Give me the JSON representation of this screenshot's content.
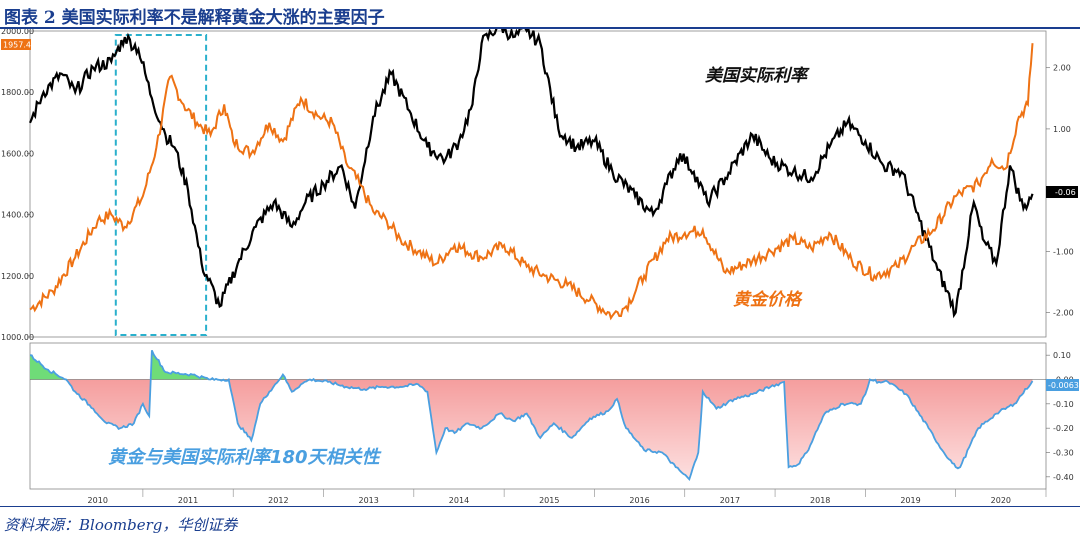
{
  "figure": {
    "title": "图表 2  美国实际利率不是解释黄金大涨的主要因子",
    "source": "资料来源：Bloomberg，华创证券"
  },
  "colors": {
    "gold": "#ee7214",
    "real_rate": "#000000",
    "corr_line": "#4a9fe0",
    "corr_negative_fill": "#f28a8a",
    "corr_positive_fill": "#6fdc78",
    "highlight_box": "#2ab0cc",
    "title": "#1a3e8f"
  },
  "chart_data": [
    {
      "type": "line",
      "x_ticks": [
        "2010",
        "2011",
        "2012",
        "2013",
        "2014",
        "2015",
        "2016",
        "2017",
        "2018",
        "2019",
        "2020"
      ],
      "y_left": {
        "lim": [
          1000,
          2000
        ],
        "ticks": [
          "1000.00",
          "1200.00",
          "1400.00",
          "1600.00",
          "1800.00",
          "2000.00"
        ]
      },
      "y_right": {
        "lim": [
          -2.4,
          2.6
        ],
        "ticks": [
          "-2.00",
          "-1.00",
          "1.00",
          "2.00"
        ]
      },
      "last_value_labels": {
        "gold": "1957.44",
        "real_rate": "-0.06"
      },
      "highlight": "dashed box over 2010.5–2011.5",
      "series": [
        {
          "name": "黄金价格",
          "axis": "left",
          "x": [
            2009.5,
            2009.75,
            2010.0,
            2010.25,
            2010.4,
            2010.55,
            2010.75,
            2010.9,
            2011.05,
            2011.2,
            2011.35,
            2011.5,
            2011.65,
            2011.75,
            2011.95,
            2012.15,
            2012.3,
            2012.5,
            2012.7,
            2012.85,
            2013.0,
            2013.15,
            2013.3,
            2013.45,
            2013.6,
            2013.8,
            2014.0,
            2014.2,
            2014.5,
            2014.75,
            2015.0,
            2015.2,
            2015.45,
            2015.7,
            2015.95,
            2016.1,
            2016.3,
            2016.55,
            2016.75,
            2016.95,
            2017.2,
            2017.5,
            2017.7,
            2017.95,
            2018.15,
            2018.35,
            2018.6,
            2018.85,
            2019.1,
            2019.3,
            2019.5,
            2019.75,
            2020.0,
            2020.15,
            2020.3,
            2020.45,
            2020.55,
            2020.6
          ],
          "values": [
            1090,
            1150,
            1260,
            1380,
            1400,
            1360,
            1460,
            1620,
            1850,
            1760,
            1700,
            1660,
            1760,
            1640,
            1600,
            1700,
            1640,
            1780,
            1720,
            1700,
            1570,
            1500,
            1410,
            1380,
            1320,
            1280,
            1240,
            1300,
            1260,
            1300,
            1230,
            1200,
            1170,
            1120,
            1070,
            1100,
            1200,
            1320,
            1340,
            1350,
            1210,
            1250,
            1280,
            1320,
            1290,
            1340,
            1250,
            1200,
            1230,
            1300,
            1350,
            1460,
            1500,
            1580,
            1550,
            1720,
            1760,
            1960
          ]
        },
        {
          "name": "美国实际利率",
          "axis": "right",
          "x": [
            2009.5,
            2009.65,
            2009.85,
            2010.0,
            2010.2,
            2010.4,
            2010.55,
            2010.7,
            2010.85,
            2011.0,
            2011.1,
            2011.25,
            2011.4,
            2011.6,
            2011.8,
            2012.0,
            2012.2,
            2012.4,
            2012.55,
            2012.75,
            2012.95,
            2013.1,
            2013.3,
            2013.5,
            2013.7,
            2013.9,
            2014.1,
            2014.25,
            2014.4,
            2014.5,
            2014.7,
            2014.85,
            2015.0,
            2015.15,
            2015.35,
            2015.55,
            2015.75,
            2015.95,
            2016.2,
            2016.4,
            2016.55,
            2016.7,
            2016.85,
            2017.0,
            2017.2,
            2017.5,
            2017.7,
            2017.95,
            2018.15,
            2018.35,
            2018.55,
            2018.75,
            2018.95,
            2019.15,
            2019.35,
            2019.55,
            2019.75,
            2019.95,
            2020.05,
            2020.2,
            2020.35,
            2020.5,
            2020.6
          ],
          "values": [
            1.1,
            1.6,
            1.9,
            1.6,
            2.0,
            2.1,
            2.5,
            2.3,
            1.5,
            0.9,
            0.7,
            0.0,
            -1.2,
            -1.9,
            -1.2,
            -0.6,
            -0.2,
            -0.6,
            -0.2,
            0.1,
            0.4,
            -0.3,
            1.2,
            1.9,
            1.3,
            0.7,
            0.5,
            0.8,
            1.4,
            2.4,
            2.7,
            2.5,
            2.6,
            2.4,
            1.0,
            0.7,
            0.8,
            0.3,
            -0.1,
            -0.4,
            0.1,
            0.6,
            0.3,
            -0.2,
            0.2,
            0.9,
            0.5,
            0.3,
            0.2,
            0.7,
            1.1,
            0.8,
            0.4,
            0.3,
            -0.5,
            -1.3,
            -2.0,
            -0.2,
            -0.8,
            -1.2,
            0.4,
            -0.3,
            -0.06
          ]
        }
      ]
    },
    {
      "type": "area",
      "y_lim": [
        -0.45,
        0.15
      ],
      "y_ticks": [
        "0.10",
        "-0.00",
        "-0.10",
        "-0.20",
        "-0.30",
        "-0.40"
      ],
      "last_value_label": "-0.0063",
      "series": [
        {
          "name": "黄金与美国实际利率180天相关性",
          "x": [
            2009.5,
            2009.7,
            2009.9,
            2010.0,
            2010.2,
            2010.35,
            2010.5,
            2010.65,
            2010.75,
            2010.82,
            2010.85,
            2011.0,
            2011.3,
            2011.5,
            2011.7,
            2011.8,
            2011.95,
            2012.05,
            2012.15,
            2012.3,
            2012.4,
            2012.5,
            2012.6,
            2012.8,
            2013.0,
            2013.2,
            2013.4,
            2013.6,
            2013.8,
            2013.9,
            2014.0,
            2014.1,
            2014.2,
            2014.35,
            2014.5,
            2014.7,
            2014.85,
            2015.0,
            2015.15,
            2015.3,
            2015.5,
            2015.7,
            2015.9,
            2016.0,
            2016.1,
            2016.3,
            2016.5,
            2016.65,
            2016.8,
            2016.9,
            2016.95,
            2017.1,
            2017.3,
            2017.5,
            2017.7,
            2017.85,
            2017.9,
            2018.0,
            2018.1,
            2018.3,
            2018.5,
            2018.7,
            2018.75,
            2018.8,
            2018.9,
            2019.0,
            2019.2,
            2019.45,
            2019.6,
            2019.75,
            2019.8,
            2020.0,
            2020.2,
            2020.4,
            2020.6
          ],
          "values": [
            0.1,
            0.04,
            0.0,
            -0.05,
            -0.12,
            -0.18,
            -0.2,
            -0.18,
            -0.1,
            -0.15,
            0.12,
            0.03,
            0.02,
            0.0,
            0.0,
            -0.18,
            -0.25,
            -0.1,
            -0.05,
            0.02,
            -0.05,
            -0.02,
            0.0,
            -0.01,
            -0.03,
            -0.04,
            -0.03,
            -0.03,
            -0.02,
            -0.05,
            -0.3,
            -0.2,
            -0.22,
            -0.18,
            -0.2,
            -0.14,
            -0.17,
            -0.14,
            -0.24,
            -0.18,
            -0.24,
            -0.16,
            -0.13,
            -0.08,
            -0.2,
            -0.29,
            -0.3,
            -0.36,
            -0.41,
            -0.3,
            -0.05,
            -0.12,
            -0.08,
            -0.06,
            -0.03,
            -0.01,
            -0.36,
            -0.35,
            -0.3,
            -0.14,
            -0.1,
            -0.1,
            -0.06,
            0.0,
            -0.01,
            -0.01,
            -0.06,
            -0.2,
            -0.29,
            -0.36,
            -0.36,
            -0.2,
            -0.14,
            -0.1,
            -0.0063
          ]
        }
      ]
    }
  ],
  "annotations": {
    "real_rate_label": "美国实际利率",
    "gold_label": "黄金价格",
    "corr_label": "黄金与美国实际利率180天相关性"
  }
}
